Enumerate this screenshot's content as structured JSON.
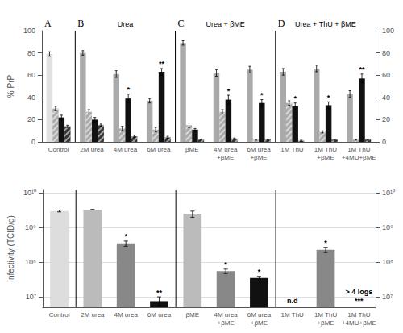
{
  "chart_data": [
    {
      "type": "bar",
      "categories": [
        "Control",
        "2M urea",
        "4M urea",
        "6M urea",
        "βME",
        "4M urea\n+βME",
        "6M urea\n+βME",
        "1M ThU",
        "1M ThU\n+βME",
        "1M ThU\n+4MU+βME"
      ],
      "panels": [
        "A",
        "B",
        "B",
        "B",
        "C",
        "C",
        "C",
        "D",
        "D",
        "D"
      ],
      "panel_subtitles": {
        "B": "Urea",
        "C": "Urea + βME",
        "D": "Urea + ThU + βME"
      },
      "y_label": "% PrP",
      "ylim": [
        0,
        100
      ],
      "yticks": [
        0,
        20,
        40,
        60,
        80,
        100
      ],
      "y2lim": [
        0,
        100
      ],
      "y2ticks": [
        0,
        20,
        40,
        60,
        80,
        100
      ],
      "grid": false,
      "series": [
        {
          "colors": [
            "#e0e0e0",
            "#aaaaaa",
            "#aaaaaa",
            "#aaaaaa",
            "#aaaaaa",
            "#aaaaaa",
            "#aaaaaa",
            "#aaaaaa",
            "#aaaaaa",
            "#aaaaaa"
          ],
          "values": [
            79,
            80,
            61,
            37,
            89,
            62,
            65,
            63,
            66,
            43
          ],
          "errors": [
            2,
            2,
            3,
            2,
            2,
            3,
            3,
            3,
            3,
            3
          ]
        },
        {
          "color": "#aaaaaa",
          "values": [
            30,
            27,
            12,
            11,
            15,
            27,
            2,
            35,
            9,
            2
          ],
          "errors": [
            2,
            2,
            2,
            2,
            2,
            2,
            0.5,
            2,
            1,
            0.5
          ]
        },
        {
          "color": "#111111",
          "values": [
            22,
            20,
            39,
            63,
            11,
            38,
            35,
            32,
            33,
            57
          ],
          "errors": [
            2,
            2,
            4,
            3,
            1,
            4,
            3,
            3,
            3,
            4
          ],
          "annotations": [
            null,
            null,
            "*",
            "**",
            null,
            "*",
            "*",
            "*",
            "*",
            "**"
          ]
        },
        {
          "color": "#333333",
          "values": [
            14,
            15,
            5,
            4,
            2,
            3,
            2,
            1,
            2,
            2
          ],
          "errors": [
            1,
            1,
            1,
            1,
            0.5,
            0.5,
            0.5,
            0.5,
            0.5,
            0.5
          ]
        }
      ]
    },
    {
      "type": "bar",
      "log": "y",
      "categories": [
        "Control",
        "2M urea",
        "4M urea",
        "6M urea",
        "βME",
        "4M urea\n+βME",
        "6M urea\n+βME",
        "1M ThU",
        "1M ThU\n+βME",
        "1M ThU\n+4MU+βME"
      ],
      "panels": [
        "A",
        "B",
        "B",
        "B",
        "C",
        "C",
        "C",
        "D",
        "D",
        "D"
      ],
      "y_label": "Infectivity (TCID/g)",
      "ylim": [
        5000000,
        12000000000
      ],
      "yticks": [
        {
          "value": 10000000,
          "label": "10⁷"
        },
        {
          "value": 100000000,
          "label": "10⁸"
        },
        {
          "value": 1000000000,
          "label": "10⁹"
        },
        {
          "value": 10000000000,
          "label": "10¹⁰"
        }
      ],
      "y2lim": [
        5000000,
        12000000000
      ],
      "y2ticks": [
        {
          "value": 10000000,
          "label": "10⁷"
        },
        {
          "value": 100000000,
          "label": "10⁸"
        },
        {
          "value": 1000000000,
          "label": "10⁹"
        },
        {
          "value": 10000000000,
          "label": "10¹⁰"
        }
      ],
      "grid": true,
      "colors": [
        "#dddddd",
        "#bbbbbb",
        "#888888",
        "#111111",
        "#bbbbbb",
        "#888888",
        "#111111",
        null,
        "#888888",
        null
      ],
      "values": [
        3000000000,
        3300000000,
        350000000,
        7500000,
        2500000000,
        55000000,
        35000000,
        null,
        230000000,
        null
      ],
      "errors_low": [
        150000000,
        80000000,
        60000000,
        2000000,
        500000000,
        8000000,
        4000000,
        null,
        40000000,
        null
      ],
      "errors_high": [
        200000000,
        80000000,
        60000000,
        2500000,
        500000000,
        8000000,
        4000000,
        null,
        40000000,
        null
      ],
      "annotations": [
        null,
        null,
        "*",
        "**",
        null,
        "*",
        "*",
        "n.d",
        "*",
        "> 4 logs\n***"
      ]
    }
  ]
}
